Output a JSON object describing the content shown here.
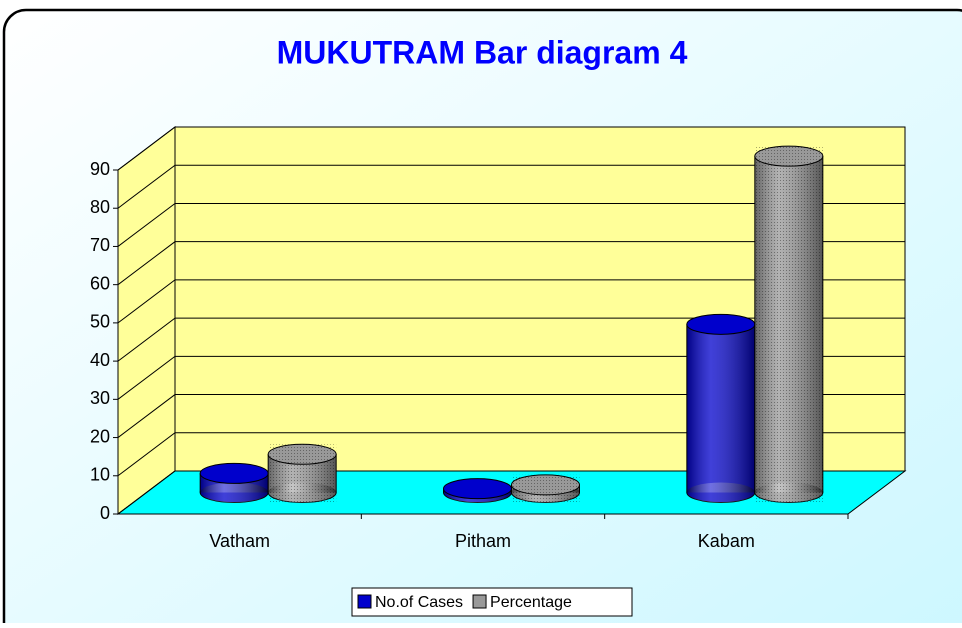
{
  "chart_data": {
    "type": "bar3d",
    "title": "MUKUTRAM Bar diagram 4",
    "categories": [
      "Vatham",
      "Pitham",
      "Kabam"
    ],
    "series": [
      {
        "name": "No.of Cases",
        "color": "#0000cc",
        "values": [
          5,
          1,
          44
        ]
      },
      {
        "name": "Percentage",
        "color": "#999999",
        "values": [
          10,
          2,
          88
        ]
      }
    ],
    "ylim": [
      0,
      90
    ],
    "yticks": [
      0,
      10,
      20,
      30,
      40,
      50,
      60,
      70,
      80,
      90
    ],
    "grid": true,
    "legend": "bottom"
  }
}
